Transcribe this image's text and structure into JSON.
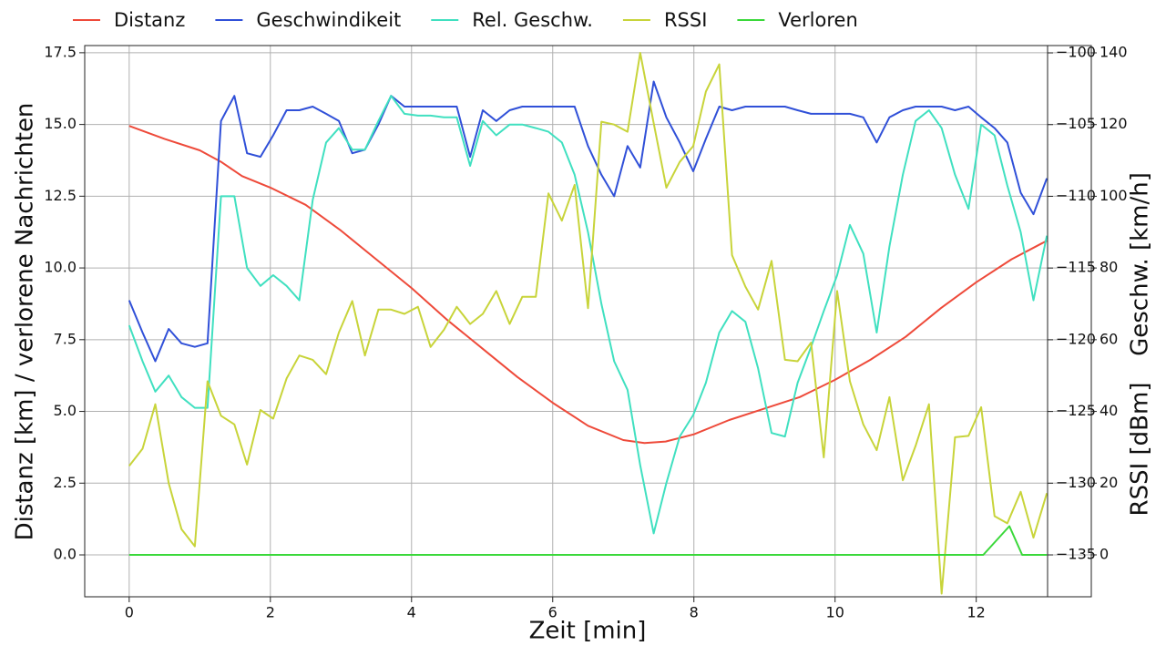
{
  "chart_data": {
    "type": "line",
    "xlabel": "Zeit [min]",
    "ylabel": "Distanz [km] / verlorene Nachrichten",
    "y2label": "RSSI [dBm]",
    "y3label": "Geschw. [km/h]",
    "xlim": [
      -0.63,
      13.63
    ],
    "xticks": [
      0,
      2,
      4,
      6,
      8,
      10,
      12
    ],
    "ylim": [
      -1.46,
      17.75
    ],
    "yticks": [
      {
        "value": 0,
        "label": "0.0"
      },
      {
        "value": 2.5,
        "label": "2.5"
      },
      {
        "value": 5,
        "label": "5.0"
      },
      {
        "value": 7.5,
        "label": "7.5"
      },
      {
        "value": 10,
        "label": "10.0"
      },
      {
        "value": 12.5,
        "label": "12.5"
      },
      {
        "value": 15,
        "label": "15.0"
      },
      {
        "value": 17.5,
        "label": "17.5"
      }
    ],
    "y2lim": [
      -137.92,
      -99.49
    ],
    "y2ticks": [
      {
        "value": -135,
        "label": "−135"
      },
      {
        "value": -130,
        "label": "−130"
      },
      {
        "value": -125,
        "label": "−125"
      },
      {
        "value": -120,
        "label": "−120"
      },
      {
        "value": -115,
        "label": "−115"
      },
      {
        "value": -110,
        "label": "−110"
      },
      {
        "value": -105,
        "label": "−105"
      },
      {
        "value": -100,
        "label": "−100"
      }
    ],
    "y3lim": [
      -11.69,
      142.03
    ],
    "y3ticks": [
      0,
      20,
      40,
      60,
      80,
      100,
      120,
      140
    ],
    "grid": true,
    "legend": "top",
    "x": [
      0,
      0.19,
      0.37,
      0.56,
      0.74,
      0.93,
      1.11,
      1.3,
      1.49,
      1.67,
      1.86,
      2.04,
      2.23,
      2.41,
      2.6,
      2.79,
      2.97,
      3.16,
      3.34,
      3.53,
      3.71,
      3.9,
      4.09,
      4.27,
      4.46,
      4.64,
      4.83,
      5.01,
      5.2,
      5.39,
      5.57,
      5.76,
      5.94,
      6.13,
      6.31,
      6.5,
      6.69,
      6.87,
      7.06,
      7.24,
      7.43,
      7.61,
      7.8,
      7.99,
      8.17,
      8.36,
      8.54,
      8.73,
      8.91,
      9.1,
      9.29,
      9.47,
      9.66,
      9.84,
      10.03,
      10.21,
      10.4,
      10.59,
      10.77,
      10.96,
      11.14,
      11.33,
      11.51,
      11.7,
      11.89,
      12.07,
      12.26,
      12.44,
      12.63,
      12.81,
      13.0
    ],
    "series": [
      {
        "name": "Distanz",
        "color": "#ee4a3a",
        "x": [
          0,
          0.5,
          1,
          1.3,
          1.6,
          2,
          2.5,
          3,
          3.5,
          4,
          4.5,
          5,
          5.5,
          6,
          6.5,
          7,
          7.3,
          7.6,
          8,
          8.5,
          9,
          9.5,
          10,
          10.5,
          11,
          11.5,
          12,
          12.5,
          13
        ],
        "values": [
          14.95,
          14.5,
          14.1,
          13.7,
          13.2,
          12.8,
          12.2,
          11.3,
          10.3,
          9.3,
          8.2,
          7.2,
          6.2,
          5.3,
          4.5,
          4.0,
          3.9,
          3.95,
          4.2,
          4.7,
          5.1,
          5.5,
          6.1,
          6.8,
          7.6,
          8.6,
          9.5,
          10.3,
          10.95
        ]
      },
      {
        "name": "Geschwindikeit",
        "color": "#3050d8",
        "axis": "y3",
        "values": [
          71,
          62,
          54,
          63,
          59,
          58,
          59,
          121,
          128,
          112,
          111,
          117,
          124,
          124,
          125,
          123,
          121,
          112,
          113,
          120,
          128,
          125,
          125,
          125,
          125,
          125,
          111,
          124,
          121,
          124,
          125,
          125,
          125,
          125,
          125,
          114,
          106,
          100,
          114,
          108,
          132,
          122,
          115,
          107,
          116,
          125,
          124,
          125,
          125,
          125,
          125,
          124,
          123,
          123,
          123,
          123,
          122,
          115,
          122,
          124,
          125,
          125,
          125,
          124,
          125,
          122,
          119,
          115,
          101,
          95,
          105
        ]
      },
      {
        "name": "Rel. Geschw.",
        "color": "#40e0c0",
        "axis": "y3",
        "values": [
          64,
          54,
          45.5,
          50,
          44,
          41,
          41,
          100,
          100,
          80,
          75,
          78,
          75,
          71,
          99,
          115,
          119,
          113,
          113,
          121,
          128,
          123,
          122.5,
          122.5,
          122,
          122,
          108.5,
          121,
          117,
          120,
          120,
          119,
          118,
          115,
          106,
          90,
          70,
          54,
          46,
          25,
          6,
          20,
          33,
          39,
          48,
          62,
          68,
          65,
          52,
          34,
          33,
          48,
          58,
          68,
          78,
          92,
          84,
          62,
          86,
          106,
          121,
          124,
          119,
          106,
          96.5,
          120,
          117,
          103,
          90,
          71,
          89
        ]
      },
      {
        "name": "RSSI",
        "color": "#c8d43a",
        "axis": "y2",
        "values": [
          -128.8,
          -127.6,
          -124.5,
          -130,
          -133.2,
          -134.4,
          -122.9,
          -125.3,
          -125.9,
          -128.7,
          -124.9,
          -125.5,
          -122.7,
          -121.1,
          -121.4,
          -122.4,
          -119.5,
          -117.3,
          -121.1,
          -117.9,
          -117.9,
          -118.2,
          -117.7,
          -120.5,
          -119.3,
          -117.7,
          -118.9,
          -118.2,
          -116.6,
          -118.9,
          -117,
          -117,
          -109.8,
          -111.7,
          -109.2,
          -117.8,
          -104.8,
          -105,
          -105.5,
          -100,
          -104.9,
          -109.4,
          -107.6,
          -106.5,
          -102.7,
          -100.8,
          -114.1,
          -116.3,
          -117.9,
          -114.5,
          -121.4,
          -121.5,
          -120.2,
          -128.2,
          -116.6,
          -122.9,
          -125.9,
          -127.7,
          -124,
          -129.8,
          -127.4,
          -124.5,
          -137.7,
          -126.8,
          -126.7,
          -124.7,
          -132.3,
          -132.8,
          -130.6,
          -133.8,
          -130.7
        ]
      },
      {
        "name": "Verloren",
        "color": "#3ad83a",
        "x": [
          0,
          12.1,
          12.47,
          12.65,
          13
        ],
        "values": [
          0,
          0,
          1,
          0,
          0
        ]
      }
    ]
  }
}
